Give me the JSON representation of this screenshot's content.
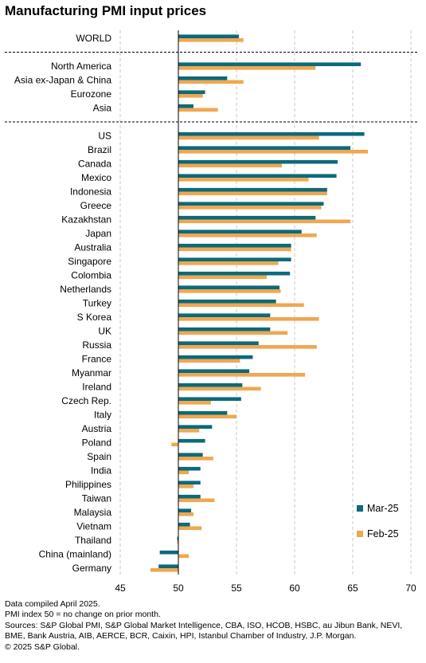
{
  "chart_data": {
    "type": "bar",
    "orientation": "horizontal",
    "title": "Manufacturing PMI input prices",
    "categories": [
      "WORLD",
      "North America",
      "Asia ex-Japan & China",
      "Eurozone",
      "Asia",
      "US",
      "Brazil",
      "Canada",
      "Mexico",
      "Indonesia",
      "Greece",
      "Kazakhstan",
      "Japan",
      "Australia",
      "Singapore",
      "Colombia",
      "Netherlands",
      "Turkey",
      "S Korea",
      "UK",
      "Russia",
      "France",
      "Myanmar",
      "Ireland",
      "Czech Rep.",
      "Italy",
      "Austria",
      "Poland",
      "Spain",
      "India",
      "Philippines",
      "Taiwan",
      "Malaysia",
      "Vietnam",
      "Thailand",
      "China (mainland)",
      "Germany"
    ],
    "groups": [
      {
        "categories": [
          "WORLD"
        ]
      },
      {
        "categories": [
          "North America",
          "Asia ex-Japan & China",
          "Eurozone",
          "Asia"
        ]
      },
      {
        "categories": [
          "US",
          "Brazil",
          "Canada",
          "Mexico",
          "Indonesia",
          "Greece",
          "Kazakhstan",
          "Japan",
          "Australia",
          "Singapore",
          "Colombia",
          "Netherlands",
          "Turkey",
          "S Korea",
          "UK",
          "Russia",
          "France",
          "Myanmar",
          "Ireland",
          "Czech Rep.",
          "Italy",
          "Austria",
          "Poland",
          "Spain",
          "India",
          "Philippines",
          "Taiwan",
          "Malaysia",
          "Vietnam",
          "Thailand",
          "China (mainland)",
          "Germany"
        ]
      }
    ],
    "series": [
      {
        "name": "Mar-25",
        "color": "#0b6a7c",
        "values": [
          55.2,
          65.7,
          54.2,
          52.3,
          51.3,
          66.0,
          64.8,
          63.7,
          63.6,
          62.8,
          62.5,
          61.8,
          60.6,
          59.7,
          59.7,
          59.6,
          58.7,
          58.4,
          57.9,
          57.9,
          56.9,
          56.4,
          56.1,
          55.5,
          55.4,
          54.2,
          52.9,
          52.3,
          52.1,
          51.9,
          51.9,
          51.9,
          51.1,
          51.0,
          49.9,
          48.4,
          48.3
        ]
      },
      {
        "name": "Feb-25",
        "color": "#f0a750",
        "values": [
          55.6,
          61.8,
          55.6,
          52.1,
          53.4,
          62.1,
          66.3,
          58.9,
          61.2,
          62.8,
          62.3,
          64.8,
          61.9,
          59.7,
          58.6,
          57.6,
          58.8,
          60.8,
          62.1,
          59.4,
          61.9,
          55.3,
          60.9,
          57.1,
          52.8,
          55.0,
          51.8,
          49.4,
          53.0,
          50.9,
          51.3,
          53.1,
          51.3,
          52.0,
          49.9,
          50.9,
          47.6
        ]
      }
    ],
    "xlim": [
      45,
      70
    ],
    "xticks": [
      45,
      50,
      55,
      60,
      65,
      70
    ],
    "reference_line": 50,
    "grid": "vertical dashed",
    "legend_position": "bottom-right"
  },
  "notes": [
    "Data compiled April 2025.",
    "PMI index 50 = no change on prior month.",
    "Sources: S&P Global PMI, S&P Global Market Intelligence,  CBA, ISO, HCOB, HSBC, au Jibun Bank, NEVI, BME, Bank Austria, AIB, AERCE, BCR, Caixin, HPI, Istanbul Chamber of Industry, J.P. Morgan.",
    "© 2025 S&P Global."
  ],
  "colors": {
    "mar": "#0b6a7c",
    "feb": "#f0a750",
    "grid": "#c8c8c8",
    "axis": "#000000"
  }
}
